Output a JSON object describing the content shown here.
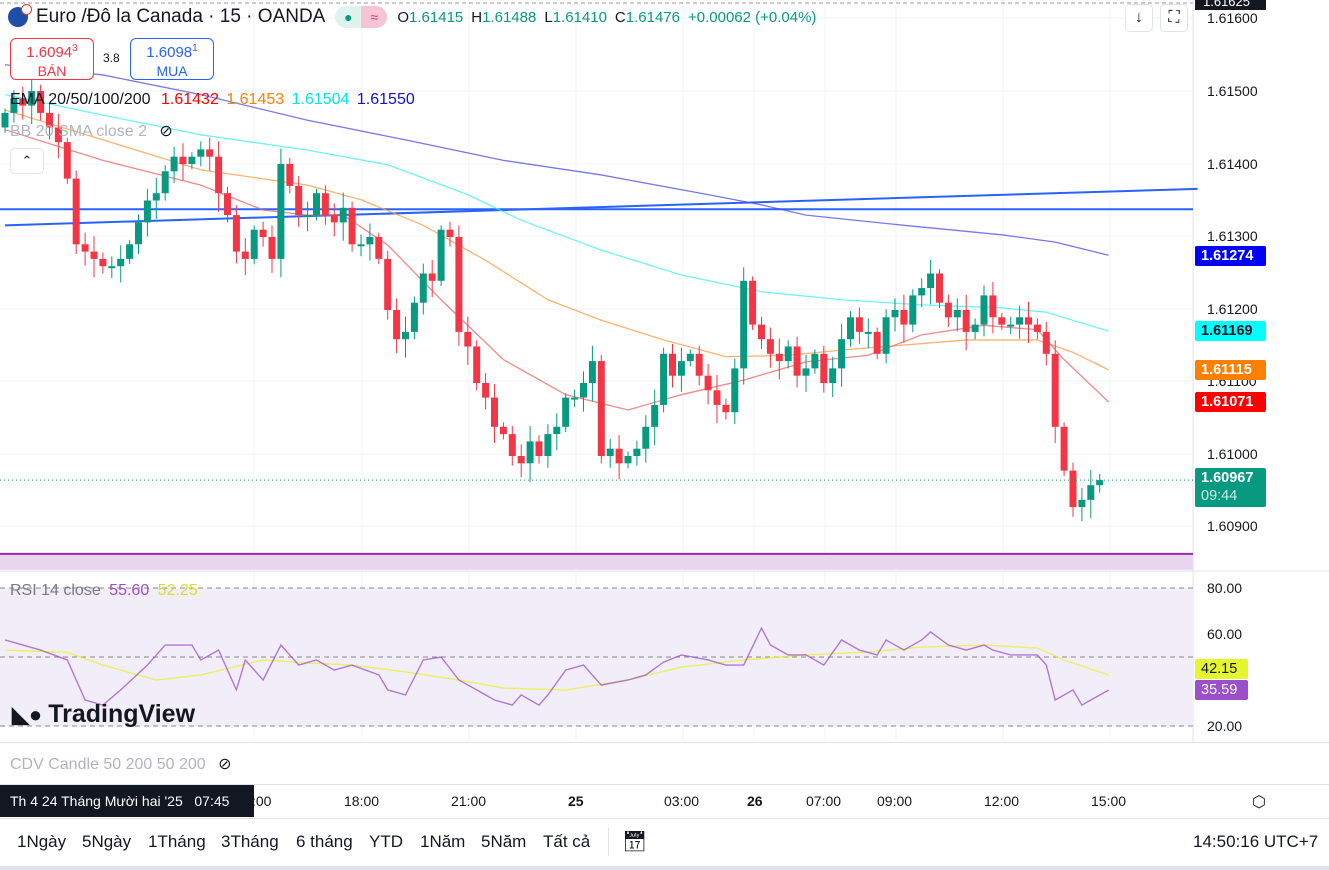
{
  "header": {
    "title": "Euro /Đô la Canada · 15 · OANDA",
    "ohlc": [
      {
        "k": "O",
        "v": "1.61415"
      },
      {
        "k": "H",
        "v": "1.61488"
      },
      {
        "k": "L",
        "v": "1.61410"
      },
      {
        "k": "C",
        "v": "1.61476"
      },
      {
        "k": "",
        "v": "+0.00062 (+0.04%)"
      }
    ]
  },
  "trade": {
    "sell_price": "1.6094",
    "sell_sup": "3",
    "sell_label": "BÁN",
    "spread": "3.8",
    "buy_price": "1.6098",
    "buy_sup": "1",
    "buy_label": "MUA"
  },
  "legends": {
    "ema_name": "EMA 20/50/100/200",
    "ema_values": [
      "1.61432",
      "1.61453",
      "1.61504",
      "1.61550"
    ],
    "bb": "BB 20 SMA close 2",
    "rsi_name": "RSI 14 close",
    "rsi_value": "55.60",
    "rsi_ma": "52.25",
    "cdv": "CDV Candle 50 200 50 200"
  },
  "colors": {
    "up": "#089981",
    "down": "#F23645",
    "ema20": "#FF0000",
    "ema50": "#FF8000",
    "ema100": "#00FFFF",
    "ema200": "#0000FF",
    "rsi": "#9C4FC8",
    "rsi_ma": "#E6F02E"
  },
  "price_axis": {
    "ticks": [
      "1.61600",
      "1.61500",
      "1.61400",
      "1.61300",
      "1.61200",
      "1.61100",
      "1.61000",
      "1.60900"
    ],
    "top_tag": "1.61625",
    "tags": [
      "1.61274",
      "1.61169",
      "1.61115",
      "1.61071"
    ],
    "last_price": "1.60967",
    "countdown": "09:44"
  },
  "rsi_axis": {
    "ticks": [
      "80.00",
      "60.00",
      "20.00"
    ],
    "ma_tag": "42.15",
    "rsi_tag": "35.59"
  },
  "time_axis": {
    "crosshair_label": "Th 4 24 Tháng Mười hai '25   07:45",
    "labels": [
      ":00",
      "18:00",
      "21:00",
      "25",
      "03:00",
      "26",
      "07:00",
      "09:00",
      "12:00",
      "15:00"
    ]
  },
  "toolbar": {
    "ranges": [
      "1Ngày",
      "5Ngày",
      "1Tháng",
      "3Tháng",
      "6 tháng",
      "YTD",
      "1Năm",
      "5Năm",
      "Tất cả"
    ],
    "clock": "14:50:16 UTC+7"
  },
  "watermark": "TradingView",
  "chart_data": {
    "type": "candlestick",
    "price_range": [
      1.6085,
      1.6162
    ],
    "closes": [
      1.6147,
      1.6149,
      1.6148,
      1.615,
      1.6147,
      1.6145,
      1.6143,
      1.6138,
      1.6129,
      1.6128,
      1.6127,
      1.6126,
      1.6126,
      1.6127,
      1.6129,
      1.6132,
      1.6135,
      1.6136,
      1.6139,
      1.6141,
      1.614,
      1.6141,
      1.6142,
      1.6141,
      1.6136,
      1.6133,
      1.6128,
      1.6127,
      1.6131,
      1.613,
      1.6127,
      1.614,
      1.6137,
      1.6133,
      1.6133,
      1.6136,
      1.6133,
      1.6132,
      1.6134,
      1.6129,
      1.6129,
      1.613,
      1.6127,
      1.612,
      1.6116,
      1.6117,
      1.6121,
      1.6125,
      1.6124,
      1.6131,
      1.613,
      1.6117,
      1.6115,
      1.611,
      1.6108,
      1.6104,
      1.6103,
      1.61,
      1.6099,
      1.6102,
      1.61,
      1.6103,
      1.6104,
      1.6108,
      1.6108,
      1.611,
      1.6113,
      1.61,
      1.6101,
      1.6099,
      1.61,
      1.6101,
      1.6104,
      1.6107,
      1.6114,
      1.6111,
      1.6113,
      1.6114,
      1.6111,
      1.6109,
      1.6107,
      1.6106,
      1.6112,
      1.6124,
      1.6118,
      1.6116,
      1.6114,
      1.6113,
      1.6115,
      1.6111,
      1.6112,
      1.6114,
      1.611,
      1.6112,
      1.6116,
      1.6119,
      1.6117,
      1.6117,
      1.6114,
      1.6119,
      1.612,
      1.6118,
      1.6122,
      1.6123,
      1.6125,
      1.6121,
      1.6119,
      1.612,
      1.6117,
      1.6118,
      1.6122,
      1.6119,
      1.6118,
      1.6118,
      1.6119,
      1.6118,
      1.6117,
      1.6114,
      1.6104,
      1.6098,
      1.6093,
      1.6094,
      1.6096,
      1.60967
    ],
    "ema20": [
      [
        0,
        1.61447
      ],
      [
        11,
        1.61405
      ],
      [
        22,
        1.61371
      ],
      [
        29,
        1.61337
      ],
      [
        34,
        1.6133
      ],
      [
        38,
        1.6133
      ],
      [
        43,
        1.61289
      ],
      [
        49,
        1.61214
      ],
      [
        56,
        1.61132
      ],
      [
        63,
        1.61084
      ],
      [
        70,
        1.61063
      ],
      [
        76,
        1.61084
      ],
      [
        83,
        1.61104
      ],
      [
        90,
        1.61129
      ],
      [
        97,
        1.61138
      ],
      [
        103,
        1.61166
      ],
      [
        110,
        1.61179
      ],
      [
        116,
        1.61173
      ],
      [
        119,
        1.61132
      ],
      [
        124,
        1.61074
      ]
    ],
    "ema50": [
      [
        0,
        1.61474
      ],
      [
        11,
        1.61433
      ],
      [
        22,
        1.61392
      ],
      [
        34,
        1.61371
      ],
      [
        40,
        1.61351
      ],
      [
        47,
        1.61316
      ],
      [
        54,
        1.61268
      ],
      [
        61,
        1.61214
      ],
      [
        67,
        1.61186
      ],
      [
        74,
        1.61159
      ],
      [
        81,
        1.61136
      ],
      [
        88,
        1.61138
      ],
      [
        94,
        1.61145
      ],
      [
        101,
        1.61152
      ],
      [
        108,
        1.61159
      ],
      [
        116,
        1.61159
      ],
      [
        120,
        1.61142
      ],
      [
        124,
        1.61118
      ]
    ],
    "ema100": [
      [
        0,
        1.61495
      ],
      [
        11,
        1.61467
      ],
      [
        22,
        1.6144
      ],
      [
        34,
        1.61419
      ],
      [
        43,
        1.61399
      ],
      [
        52,
        1.61358
      ],
      [
        58,
        1.61323
      ],
      [
        67,
        1.61282
      ],
      [
        76,
        1.61248
      ],
      [
        85,
        1.61225
      ],
      [
        94,
        1.61214
      ],
      [
        103,
        1.61207
      ],
      [
        112,
        1.61203
      ],
      [
        117,
        1.61197
      ],
      [
        124,
        1.61171
      ]
    ],
    "ema200": [
      [
        0,
        1.61536
      ],
      [
        11,
        1.61522
      ],
      [
        22,
        1.61495
      ],
      [
        34,
        1.6146
      ],
      [
        45,
        1.61433
      ],
      [
        56,
        1.61405
      ],
      [
        67,
        1.61385
      ],
      [
        79,
        1.61358
      ],
      [
        85,
        1.61344
      ],
      [
        90,
        1.6133
      ],
      [
        101,
        1.61316
      ],
      [
        112,
        1.61303
      ],
      [
        118,
        1.61293
      ],
      [
        124,
        1.61275
      ]
    ],
    "hlines": [
      1.61338,
      1.60866
    ],
    "trendline": [
      [
        0,
        1.61316
      ],
      [
        134,
        1.61366
      ]
    ],
    "rsi": [
      [
        0,
        57.4
      ],
      [
        4,
        53
      ],
      [
        7,
        48.7
      ],
      [
        9,
        31.3
      ],
      [
        11,
        29.1
      ],
      [
        13,
        35.7
      ],
      [
        16,
        46.5
      ],
      [
        18,
        55.2
      ],
      [
        21,
        55.2
      ],
      [
        22,
        48.7
      ],
      [
        24,
        53
      ],
      [
        26,
        35.7
      ],
      [
        27,
        48.7
      ],
      [
        29,
        40
      ],
      [
        31,
        55.2
      ],
      [
        33,
        46.5
      ],
      [
        35,
        48.7
      ],
      [
        37,
        44.3
      ],
      [
        39,
        46.5
      ],
      [
        42,
        42.2
      ],
      [
        43,
        35.7
      ],
      [
        45,
        33.5
      ],
      [
        47,
        48.7
      ],
      [
        49,
        50
      ],
      [
        51,
        40
      ],
      [
        53,
        35.7
      ],
      [
        55,
        31.3
      ],
      [
        57,
        29.1
      ],
      [
        58,
        33.5
      ],
      [
        60,
        29.1
      ],
      [
        61,
        33.5
      ],
      [
        63,
        44.3
      ],
      [
        65,
        46.5
      ],
      [
        67,
        37.8
      ],
      [
        70,
        40
      ],
      [
        72,
        42.2
      ],
      [
        74,
        47.8
      ],
      [
        76,
        50.9
      ],
      [
        79,
        48.7
      ],
      [
        81,
        46.5
      ],
      [
        83,
        46.5
      ],
      [
        85,
        62.6
      ],
      [
        86,
        55.2
      ],
      [
        88,
        50.9
      ],
      [
        90,
        50.9
      ],
      [
        92,
        46.5
      ],
      [
        94,
        57.4
      ],
      [
        96,
        53
      ],
      [
        98,
        50.9
      ],
      [
        99,
        57.4
      ],
      [
        101,
        53
      ],
      [
        103,
        57.4
      ],
      [
        104,
        60.9
      ],
      [
        106,
        55.2
      ],
      [
        108,
        53
      ],
      [
        110,
        55.2
      ],
      [
        111,
        53
      ],
      [
        113,
        50.9
      ],
      [
        116,
        50.9
      ],
      [
        117,
        46.5
      ],
      [
        118,
        31.3
      ],
      [
        120,
        35.7
      ],
      [
        121,
        29.1
      ],
      [
        122,
        31.3
      ],
      [
        124,
        35.6
      ]
    ],
    "rsi_ma": [
      [
        0,
        53
      ],
      [
        7,
        52
      ],
      [
        11,
        46.5
      ],
      [
        17,
        40
      ],
      [
        22,
        42.2
      ],
      [
        29,
        48.7
      ],
      [
        34,
        47.4
      ],
      [
        39,
        46.5
      ],
      [
        45,
        43.5
      ],
      [
        51,
        40
      ],
      [
        56,
        36.5
      ],
      [
        63,
        35.7
      ],
      [
        70,
        40
      ],
      [
        76,
        45.6
      ],
      [
        83,
        48.7
      ],
      [
        90,
        50.9
      ],
      [
        97,
        52.2
      ],
      [
        103,
        54.3
      ],
      [
        110,
        55.2
      ],
      [
        116,
        53.9
      ],
      [
        119,
        48.7
      ],
      [
        124,
        42.2
      ]
    ],
    "rsi_range": [
      20,
      80
    ],
    "rsi_levels": [
      80,
      50,
      20
    ]
  }
}
